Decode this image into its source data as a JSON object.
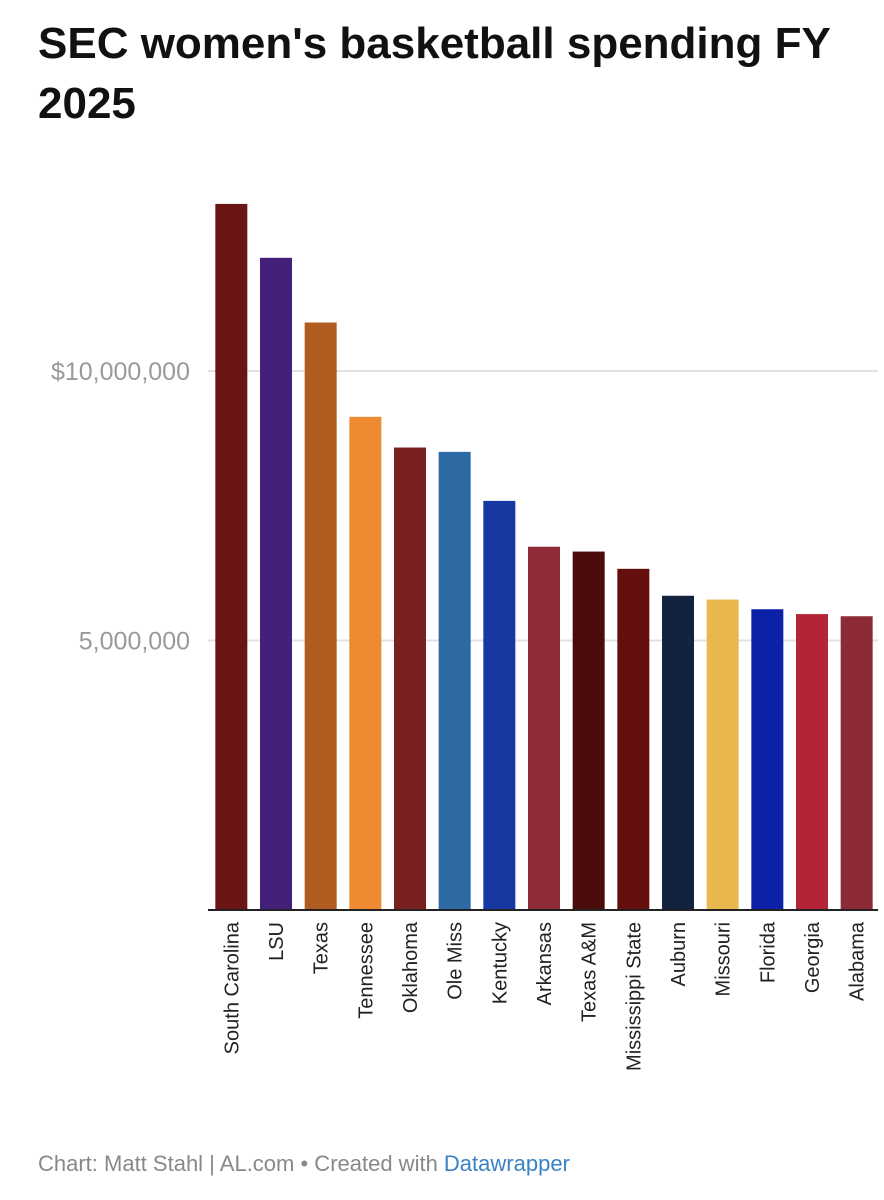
{
  "title": "SEC women's basketball spending FY 2025",
  "footer": {
    "credit": "Chart: Matt Stahl | AL.com • Created with ",
    "link": "Datawrapper"
  },
  "chart_data": {
    "type": "bar",
    "title": "SEC women's basketball spending FY 2025",
    "xlabel": "",
    "ylabel": "",
    "ylim": [
      0,
      13500000
    ],
    "grid": true,
    "y_ticks": [
      {
        "value": 5000000,
        "label": "5,000,000"
      },
      {
        "value": 10000000,
        "label": "$10,000,000"
      }
    ],
    "categories": [
      "South Carolina",
      "LSU",
      "Texas",
      "Tennessee",
      "Oklahoma",
      "Ole Miss",
      "Kentucky",
      "Arkansas",
      "Texas A&M",
      "Mississippi State",
      "Auburn",
      "Missouri",
      "Florida",
      "Georgia",
      "Alabama"
    ],
    "values": [
      13100000,
      12100000,
      10900000,
      9150000,
      8580000,
      8500000,
      7590000,
      6740000,
      6650000,
      6330000,
      5830000,
      5760000,
      5580000,
      5490000,
      5450000
    ],
    "colors": [
      "#6b1414",
      "#43207a",
      "#b05c20",
      "#ee8a32",
      "#7b2020",
      "#2d6aa3",
      "#1738a0",
      "#8f2a38",
      "#4a0c0a",
      "#650e0e",
      "#13223f",
      "#e8b84e",
      "#0b22a8",
      "#b42336",
      "#8c2a36"
    ]
  }
}
